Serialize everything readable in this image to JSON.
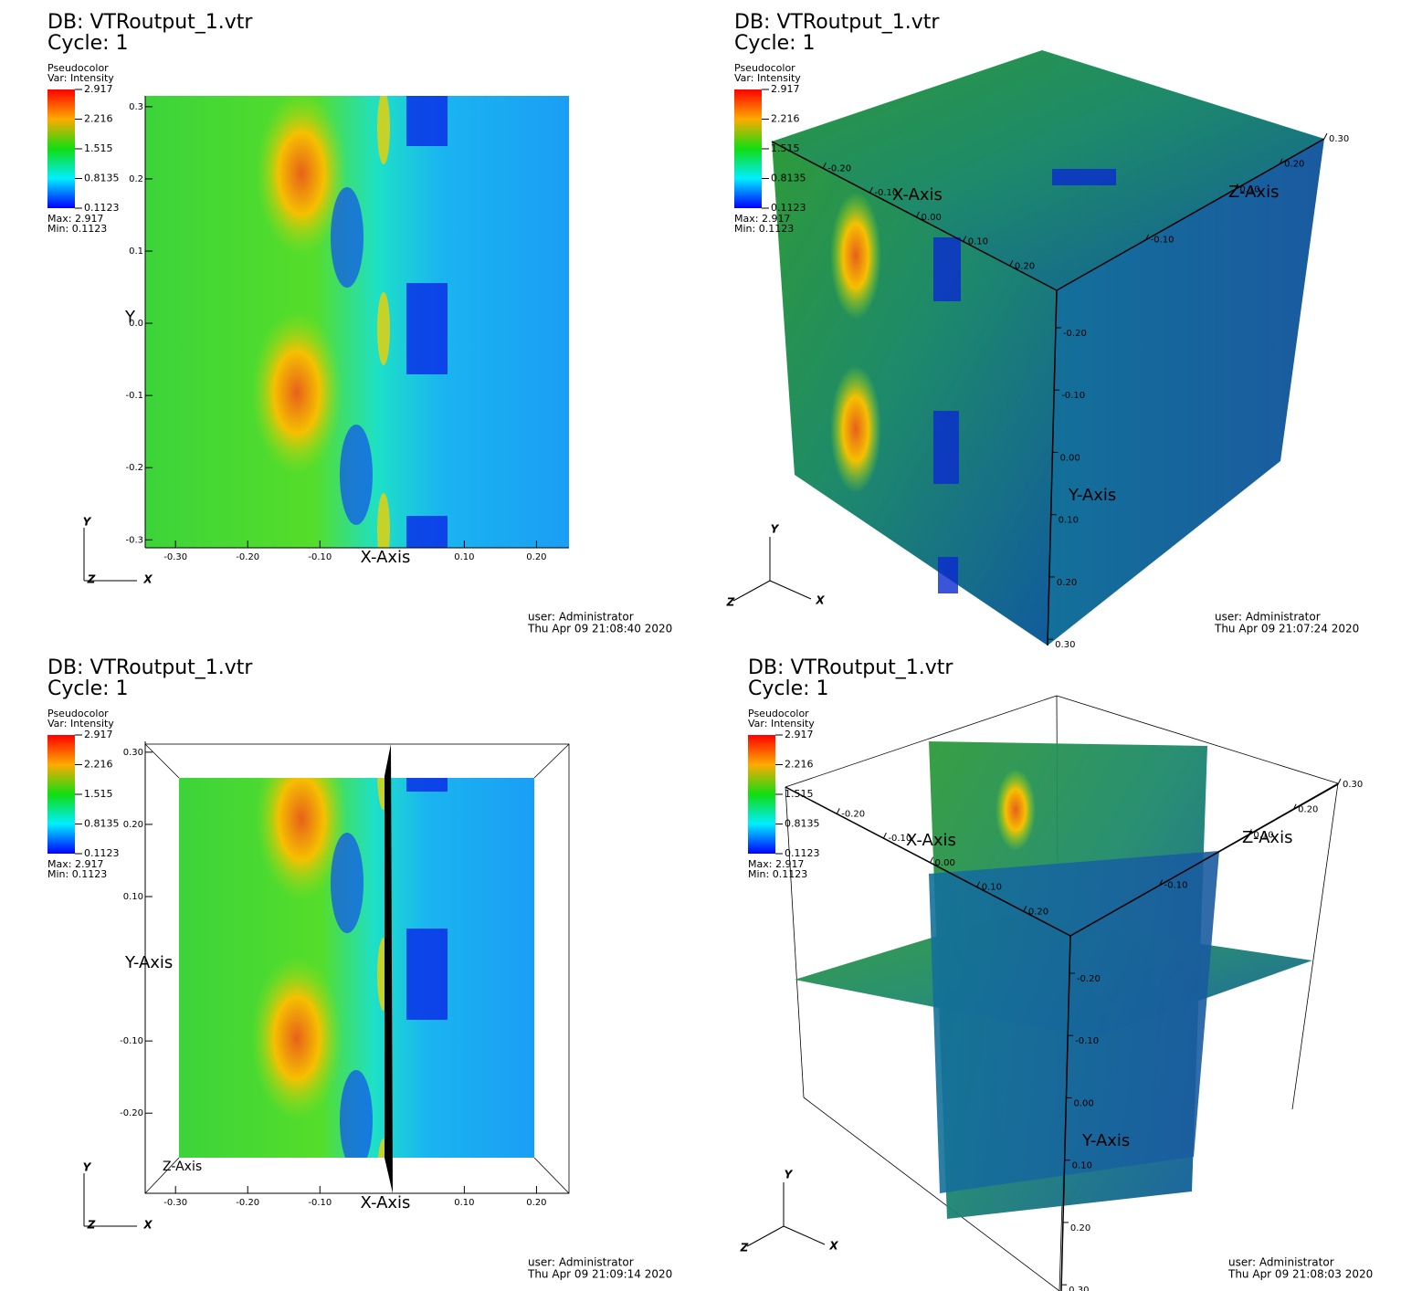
{
  "panels": [
    {
      "view": "2d",
      "db": "DB: VTRoutput_1.vtr",
      "cycle": "Cycle: 1",
      "legend": {
        "title": "Pseudocolor",
        "var": "Var: Intensity",
        "ticks": [
          2.917,
          2.216,
          1.515,
          0.8135,
          0.1123
        ],
        "max": "Max:  2.917",
        "min": "Min:  0.1123"
      },
      "x_axis": {
        "title": "X-Axis",
        "lim": [
          -0.342,
          0.245
        ],
        "ticks": [
          {
            "value": -0.3,
            "label": "-0.30"
          },
          {
            "value": -0.2,
            "label": "-0.20"
          },
          {
            "value": -0.1,
            "label": "-0.10"
          },
          {
            "value": 0.1,
            "label": "0.10"
          },
          {
            "value": 0.2,
            "label": "0.20"
          }
        ]
      },
      "y_axis": {
        "title": "Y",
        "lim": [
          -0.311,
          0.315
        ],
        "ticks": [
          0.3,
          0.2,
          0.1,
          {
            "value": 0,
            "label": "0.0"
          },
          -0.1,
          -0.2,
          -0.3
        ]
      },
      "triad": [
        "Y",
        "Z",
        "X"
      ],
      "user": "user: Administrator",
      "date": "Thu Apr 09 21:08:40 2020"
    },
    {
      "view": "cube",
      "db": "DB: VTRoutput_1.vtr",
      "cycle": "Cycle: 1",
      "legend": {
        "title": "Pseudocolor",
        "var": "Var: Intensity",
        "ticks": [
          2.917,
          2.216,
          1.515,
          0.8135,
          0.1123
        ],
        "max": "Max:  2.917",
        "min": "Min:  0.1123"
      },
      "x_axis": {
        "title": "X-Axis",
        "lim": [
          -0.31,
          0.3
        ],
        "ticks": [
          {
            "value": -0.2,
            "label": "-0.20"
          },
          {
            "value": -0.1,
            "label": "-0.10"
          },
          {
            "value": 0,
            "label": "0.00"
          },
          {
            "value": 0.1,
            "label": "0.10"
          },
          {
            "value": 0.2,
            "label": "0.20"
          }
        ]
      },
      "y_axis": {
        "title": "Y-Axis",
        "lim": [
          -0.26,
          0.31
        ],
        "ticks": [
          {
            "value": 0.3,
            "label": "0.30"
          },
          {
            "value": 0.2,
            "label": "0.20"
          },
          {
            "value": 0.1,
            "label": "0.10"
          },
          {
            "value": 0,
            "label": "0.00"
          },
          {
            "value": -0.1,
            "label": "-0.10"
          },
          {
            "value": -0.2,
            "label": "-0.20"
          }
        ]
      },
      "z_axis": {
        "title": "Z-Axis",
        "lim": [
          -0.3,
          0.3
        ],
        "ticks": [
          {
            "value": -0.1,
            "label": "-0.10"
          },
          {
            "value": 0.1,
            "label": "0.10"
          },
          {
            "value": 0.2,
            "label": "0.20"
          },
          {
            "value": 0.3,
            "label": "0.30"
          }
        ]
      },
      "triad": [
        "Y",
        "Z",
        "X"
      ],
      "user": "user: Administrator",
      "date": "Thu Apr 09 21:07:24 2020"
    },
    {
      "view": "2d",
      "db": "DB: VTRoutput_1.vtr",
      "cycle": "Cycle: 1",
      "legend": {
        "title": "Pseudocolor",
        "var": "Var: Intensity",
        "ticks": [
          2.917,
          2.216,
          1.515,
          0.8135,
          0.1123
        ],
        "max": "Max:  2.917",
        "min": "Min:  0.1123"
      },
      "x_axis": {
        "title": "X-Axis",
        "lim": [
          -0.342,
          0.245
        ],
        "ticks": [
          {
            "value": -0.3,
            "label": "-0.30"
          },
          {
            "value": -0.2,
            "label": "-0.20"
          },
          {
            "value": -0.1,
            "label": "-0.10"
          },
          {
            "value": 0.1,
            "label": "0.10"
          },
          {
            "value": 0.2,
            "label": "0.20"
          }
        ]
      },
      "y_axis": {
        "title": "Y-Axis",
        "lim": [
          -0.311,
          0.315
        ],
        "ticks": [
          {
            "value": 0.3,
            "label": "0.30"
          },
          {
            "value": 0.2,
            "label": "0.20"
          },
          {
            "value": 0.1,
            "label": "0.10"
          },
          {
            "value": -0.1,
            "label": "-0.10"
          },
          {
            "value": -0.2,
            "label": "-0.20"
          }
        ]
      },
      "z_axis": {
        "title": "Z-Axis"
      },
      "triad": [
        "Y",
        "Z",
        "X"
      ],
      "user": "user: Administrator",
      "date": "Thu Apr 09 21:09:14 2020"
    },
    {
      "view": "slices",
      "db": "DB: VTRoutput_1.vtr",
      "cycle": "Cycle: 1",
      "legend": {
        "title": "Pseudocolor",
        "var": "Var: Intensity",
        "ticks": [
          2.917,
          2.216,
          1.515,
          0.8135,
          0.1123
        ],
        "max": "Max:  2.917",
        "min": "Min:  0.1123"
      },
      "x_axis": {
        "title": "X-Axis",
        "lim": [
          -0.31,
          0.3
        ],
        "ticks": [
          {
            "value": -0.2,
            "label": "-0.20"
          },
          {
            "value": -0.1,
            "label": "-0.10"
          },
          {
            "value": 0,
            "label": "0.00"
          },
          {
            "value": 0.1,
            "label": "0.10"
          },
          {
            "value": 0.2,
            "label": "0.20"
          }
        ]
      },
      "y_axis": {
        "title": "Y-Axis",
        "lim": [
          -0.26,
          0.31
        ],
        "ticks": [
          {
            "value": 0.3,
            "label": "0.30"
          },
          {
            "value": 0.2,
            "label": "0.20"
          },
          {
            "value": 0.1,
            "label": "0.10"
          },
          {
            "value": 0,
            "label": "0.00"
          },
          {
            "value": -0.1,
            "label": "-0.10"
          },
          {
            "value": -0.2,
            "label": "-0.20"
          }
        ]
      },
      "z_axis": {
        "title": "Z-Axis",
        "lim": [
          -0.3,
          0.3
        ],
        "ticks": [
          {
            "value": -0.1,
            "label": "-0.10"
          },
          {
            "value": 0.1,
            "label": "0.10"
          },
          {
            "value": 0.2,
            "label": "0.20"
          },
          {
            "value": 0.3,
            "label": "0.30"
          }
        ]
      },
      "triad": [
        "Y",
        "Z",
        "X"
      ],
      "user": "user: Administrator",
      "date": "Thu Apr 09 21:08:03 2020"
    }
  ]
}
